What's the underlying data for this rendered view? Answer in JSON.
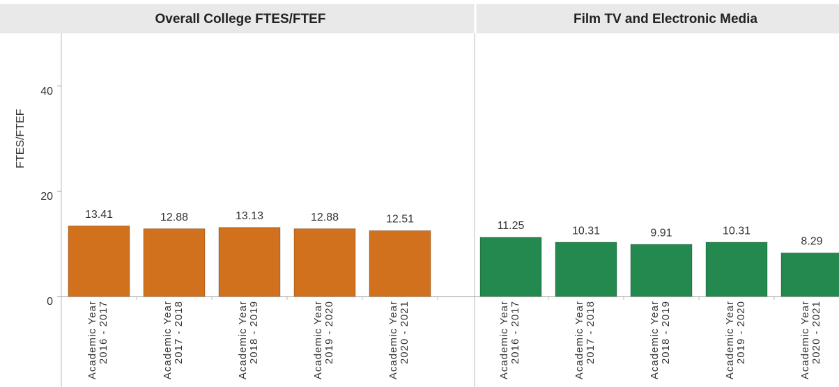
{
  "chart_data": [
    {
      "type": "bar",
      "title": "Overall College FTES/FTEF",
      "ylabel": "FTES/FTEF",
      "categories": [
        "Academic Year 2016 - 2017",
        "Academic Year 2017 - 2018",
        "Academic Year 2018 - 2019",
        "Academic Year 2019 - 2020",
        "Academic Year 2020 - 2021"
      ],
      "values": [
        13.41,
        12.88,
        13.13,
        12.88,
        12.51
      ],
      "color": "#d2711d",
      "ylim": [
        0,
        50
      ],
      "yticks": [
        0,
        20,
        40
      ]
    },
    {
      "type": "bar",
      "title": "Film TV and Electronic Media",
      "categories": [
        "Academic Year 2016 - 2017",
        "Academic Year 2017 - 2018",
        "Academic Year 2018 - 2019",
        "Academic Year 2019 - 2020",
        "Academic Year 2020 - 2021"
      ],
      "values": [
        11.25,
        10.31,
        9.91,
        10.31,
        8.29
      ],
      "color": "#23894f",
      "ylim": [
        0,
        50
      ]
    }
  ]
}
